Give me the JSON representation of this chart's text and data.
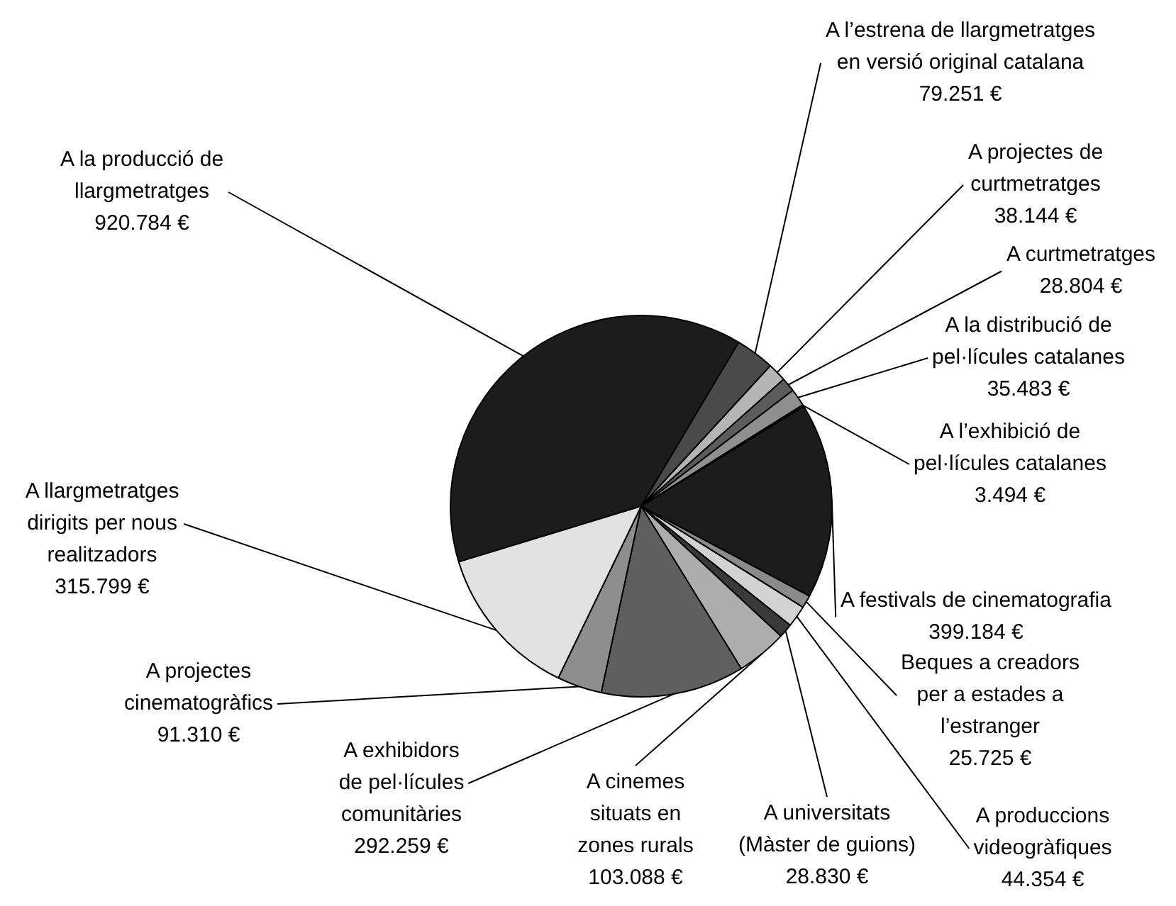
{
  "chart_data": {
    "type": "pie",
    "categories": [
      "A la producció de llargmetratges",
      "A l’estrena de llargmetratges en versió original catalana",
      "A projectes de curtmetratges",
      "A curtmetratges",
      "A la distribució de pel·lícules catalanes",
      "A l’exhibició de pel·lícules catalanes",
      "A festivals de cinematografia",
      "Beques a creadors per a estades a l’estranger",
      "A produccions videogràfiques",
      "A universitats (Màster de guions)",
      "A cinemes situats en zones rurals",
      "A exhibidors de pel·lícules comunitàries",
      "A projectes cinematogràfics",
      "A llargmetratges dirigits per nous realitzadors"
    ],
    "values": [
      920784,
      79251,
      38144,
      28804,
      35483,
      3494,
      399184,
      25725,
      44354,
      28830,
      103088,
      292259,
      91310,
      315799
    ],
    "value_labels": [
      "920.784 €",
      "79.251 €",
      "38.144 €",
      "28.804 €",
      "35.483 €",
      "3.494 €",
      "399.184 €",
      "25.725 €",
      "44.354 €",
      "28.830 €",
      "103.088 €",
      "292.259 €",
      "91.310 €",
      "315.799 €"
    ],
    "colors": [
      "#1c1c1c",
      "#4a4a4a",
      "#b5b5b5",
      "#5c5c5c",
      "#8f8f8f",
      "#333333",
      "#1c1c1c",
      "#8a8a8a",
      "#d2d2d2",
      "#3a3a3a",
      "#adadad",
      "#5f5f5f",
      "#8e8e8e",
      "#e2e2e2"
    ],
    "legend": false
  }
}
